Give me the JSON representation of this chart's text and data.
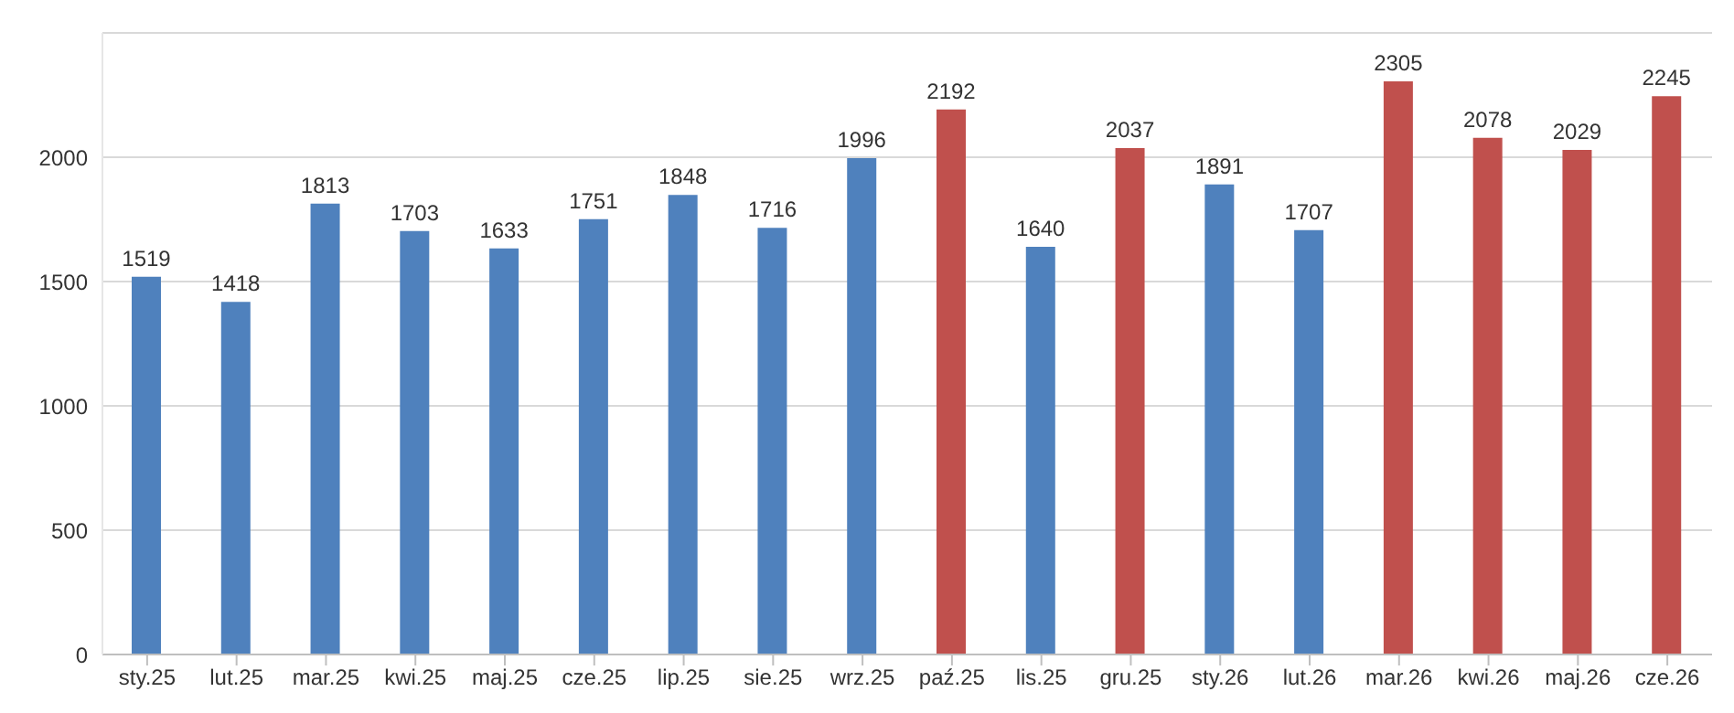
{
  "chart_data": {
    "type": "bar",
    "categories": [
      "sty.25",
      "lut.25",
      "mar.25",
      "kwi.25",
      "maj.25",
      "cze.25",
      "lip.25",
      "sie.25",
      "wrz.25",
      "paź.25",
      "lis.25",
      "gru.25",
      "sty.26",
      "lut.26",
      "mar.26",
      "kwi.26",
      "maj.26",
      "cze.26"
    ],
    "values": [
      1519,
      1418,
      1813,
      1703,
      1633,
      1751,
      1848,
      1716,
      1996,
      2192,
      1640,
      2037,
      1891,
      1707,
      2305,
      2078,
      2029,
      2245
    ],
    "colors": [
      "#4f81bd",
      "#4f81bd",
      "#4f81bd",
      "#4f81bd",
      "#4f81bd",
      "#4f81bd",
      "#4f81bd",
      "#4f81bd",
      "#4f81bd",
      "#c0504d",
      "#4f81bd",
      "#c0504d",
      "#4f81bd",
      "#4f81bd",
      "#c0504d",
      "#c0504d",
      "#c0504d",
      "#c0504d"
    ],
    "ylim": [
      0,
      2500
    ],
    "yticks": [
      0,
      500,
      1000,
      1500,
      2000
    ],
    "grid": "y",
    "data_labels": true,
    "legend": false
  }
}
